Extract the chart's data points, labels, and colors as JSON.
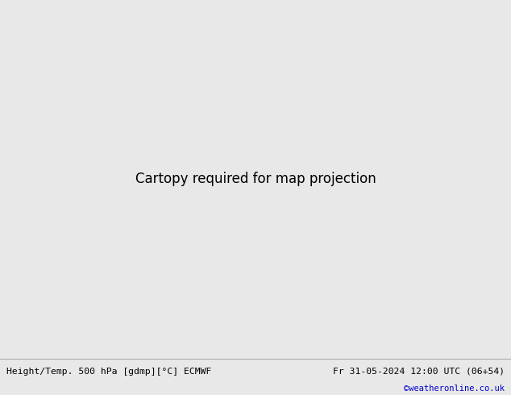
{
  "title_left": "Height/Temp. 500 hPa [gdmp][°C] ECMWF",
  "title_right": "Fr 31-05-2024 12:00 UTC (06+54)",
  "credit": "©weatheronline.co.uk",
  "bg_color": "#e8e8e8",
  "land_green": "#c8eaaa",
  "land_grey": "#c8c8c8",
  "sea_color": "#e0e0e0",
  "bottom_bg": "#f0f0f0",
  "text_color": "#000000",
  "credit_color": "#0000cc",
  "lon_min": 60,
  "lon_max": 200,
  "lat_min": -15,
  "lat_max": 65,
  "z500_color": "#000000",
  "temp_cold_color": "#ff0000",
  "temp_warm_color": "#ff8c00",
  "slp_color": "#ff00ff"
}
